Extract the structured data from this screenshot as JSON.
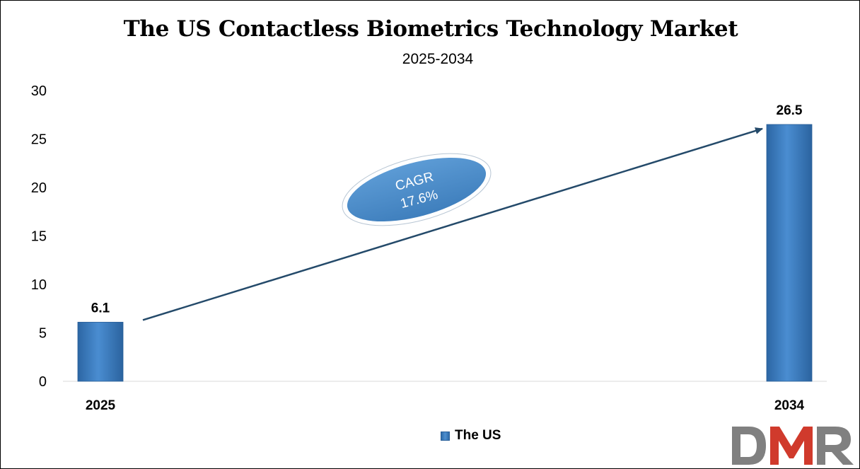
{
  "chart_data": {
    "type": "bar",
    "title": "The US Contactless Biometrics Technology Market",
    "subtitle": "2025-2034",
    "categories": [
      "2025",
      "2034"
    ],
    "series": [
      {
        "name": "The US",
        "values": [
          6.1,
          26.5
        ],
        "labels": [
          "6.1",
          "26.5"
        ]
      }
    ],
    "xlabel": "",
    "ylabel": "",
    "ylim": [
      0,
      30
    ],
    "yticks": [
      0,
      5,
      10,
      15,
      20,
      25,
      30
    ],
    "ytick_labels": [
      "0",
      "5",
      "10",
      "15",
      "20",
      "25",
      "30"
    ],
    "grid": false,
    "legend": "bottom-center",
    "annotation": {
      "line1": "CAGR",
      "line2": "17.6%"
    }
  },
  "colors": {
    "bar": "#3b7dc4",
    "bar_dark": "#2a629e",
    "arrow": "#244a6a",
    "ellipse": "#4f8fcc",
    "logo_gray": "#7f7f7f",
    "logo_red": "#d03a2c"
  },
  "logo": {
    "text": "DMR"
  }
}
